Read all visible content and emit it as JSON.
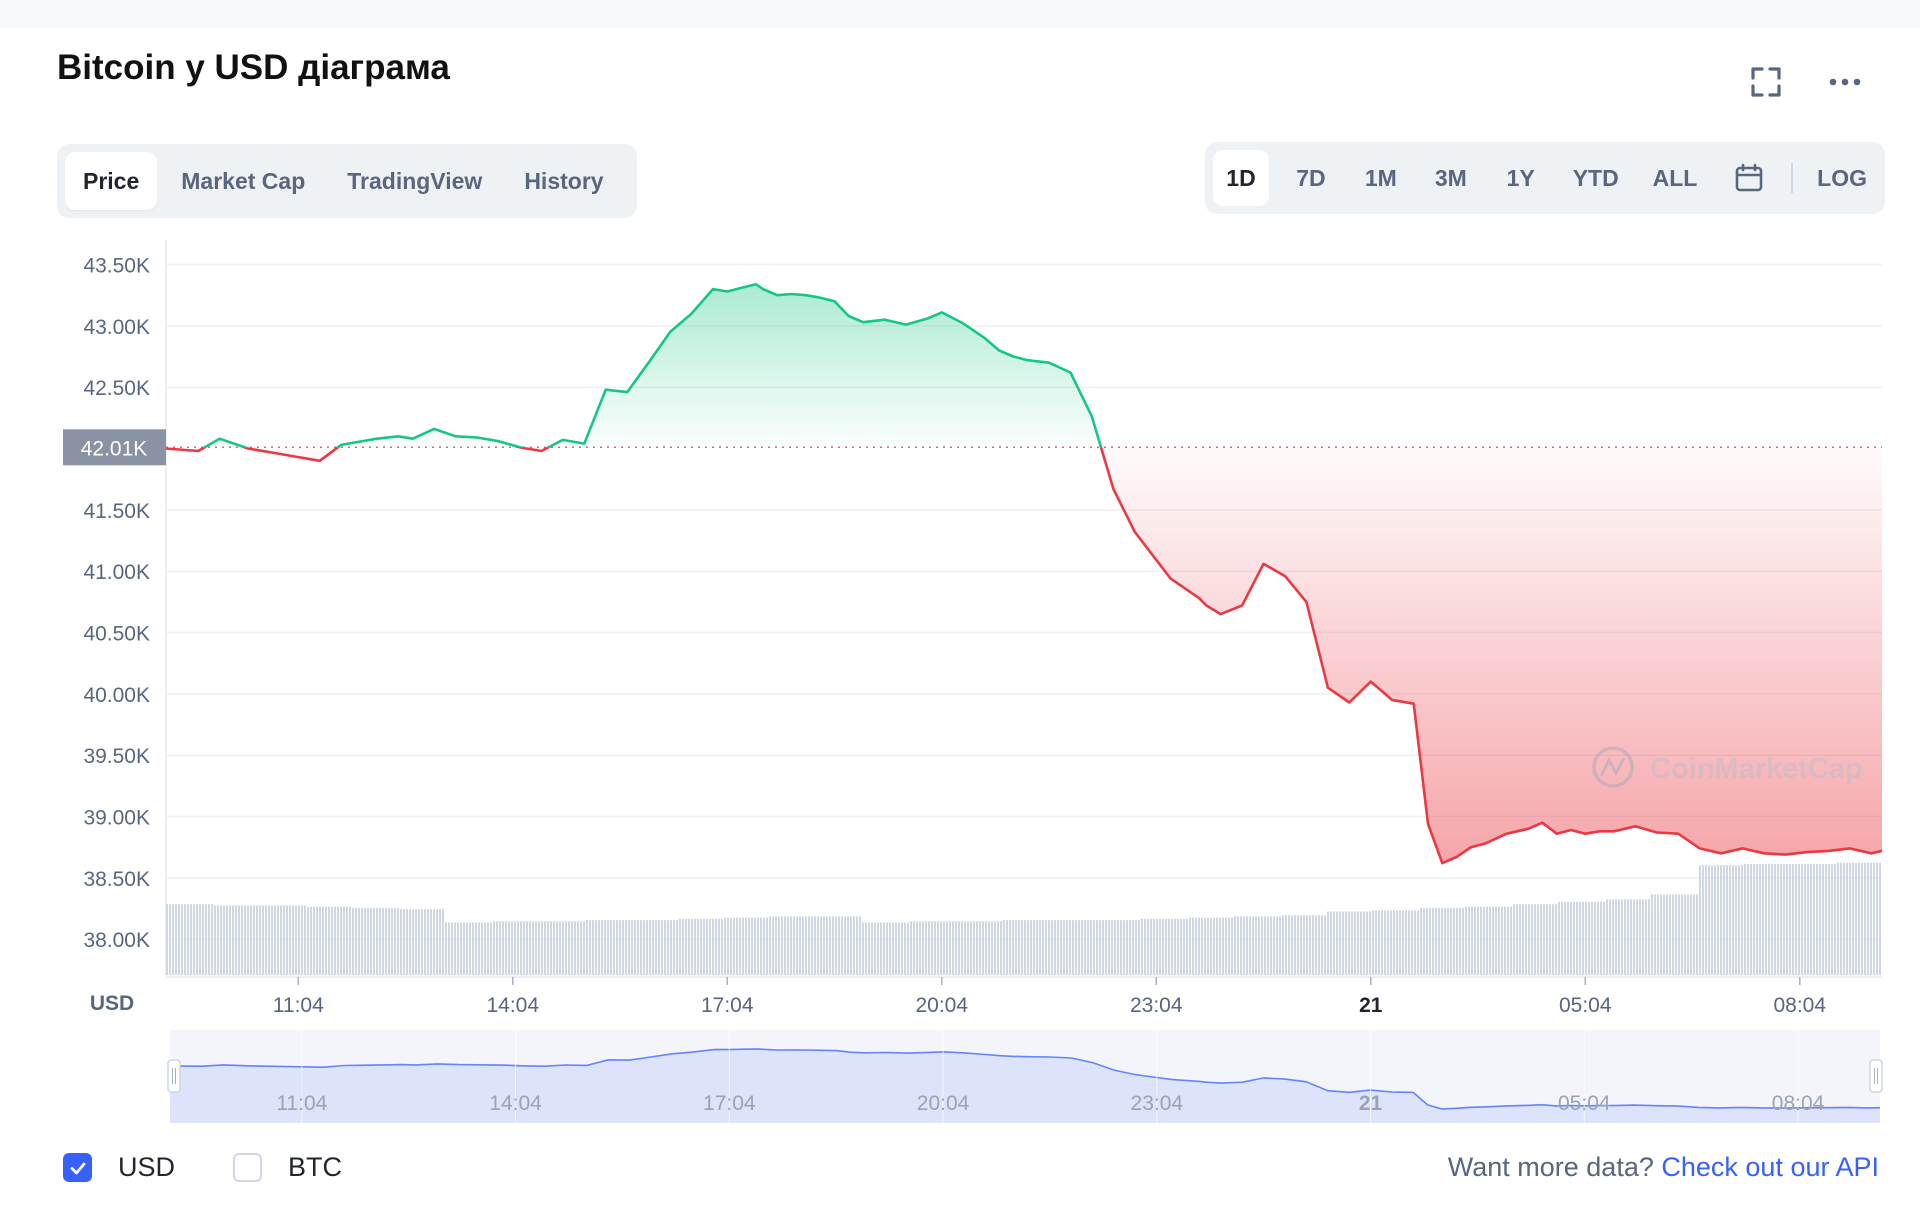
{
  "header": {
    "title": "Bitcoin у USD діаграма"
  },
  "tabs": [
    "Price",
    "Market Cap",
    "TradingView",
    "History"
  ],
  "ranges": [
    "1D",
    "7D",
    "1M",
    "3M",
    "1Y",
    "YTD",
    "ALL"
  ],
  "log_label": "LOG",
  "legend": {
    "usd": {
      "label": "USD",
      "checked": true
    },
    "btc": {
      "label": "BTC",
      "checked": false
    }
  },
  "api_note": {
    "text": "Want more data?",
    "link": "Check out our API"
  },
  "watermark": "CoinMarketCap",
  "colors": {
    "up": "#16c784",
    "down": "#ea3943",
    "accent": "#3861fb",
    "volume": "#cfd6e4",
    "navigator_fill": "#dde3fb",
    "navigator_line": "#3861fb"
  },
  "chart_data": {
    "type": "area",
    "title": "Bitcoin у USD діаграма",
    "currency_label": "USD",
    "y_ticks": [
      "43.50K",
      "43.00K",
      "42.50K",
      "42.01K",
      "41.50K",
      "41.00K",
      "40.50K",
      "40.00K",
      "39.50K",
      "39.00K",
      "38.50K",
      "38.00K"
    ],
    "ylim": [
      37700,
      43700
    ],
    "x_ticks": [
      "11:04",
      "14:04",
      "17:04",
      "20:04",
      "23:04",
      "21",
      "05:04",
      "08:04"
    ],
    "x_tick_hours": [
      2,
      5,
      8,
      11,
      14,
      17,
      20,
      23
    ],
    "xlim": [
      0.15,
      24.15
    ],
    "baseline": {
      "value": 42010,
      "label": "42.01K"
    },
    "series": [
      {
        "x": [
          0.15,
          0.6,
          0.9,
          1.3,
          1.7,
          2.0,
          2.3,
          2.6,
          2.8,
          3.1,
          3.4,
          3.6,
          3.9,
          4.2,
          4.5,
          4.8,
          5.1,
          5.4,
          5.7,
          6.0,
          6.3,
          6.6,
          6.9,
          7.2,
          7.5,
          7.8,
          8.0,
          8.2,
          8.4,
          8.5,
          8.7,
          8.9,
          9.1,
          9.3,
          9.5,
          9.7,
          9.9,
          10.2,
          10.5,
          10.8,
          11.0,
          11.3,
          11.6,
          11.8,
          12.0,
          12.2,
          12.5,
          12.8,
          13.1,
          13.4,
          13.7,
          14.2,
          14.6,
          14.7,
          14.9,
          15.2,
          15.5,
          15.8,
          16.1,
          16.4,
          16.7,
          17.0,
          17.3,
          17.6,
          17.8,
          18.0,
          18.2,
          18.4,
          18.6,
          18.9,
          19.2,
          19.4,
          19.6,
          19.8,
          20.0,
          20.2,
          20.4,
          20.7,
          21.0,
          21.3,
          21.6,
          21.9,
          22.2,
          22.5,
          22.8,
          23.1,
          23.4,
          23.7,
          24.0,
          24.15
        ],
        "y": [
          42000,
          41980,
          42080,
          42000,
          41960,
          41930,
          41900,
          42030,
          42050,
          42080,
          42100,
          42080,
          42160,
          42100,
          42090,
          42060,
          42010,
          41980,
          42070,
          42040,
          42480,
          42460,
          42700,
          42950,
          43100,
          43300,
          43280,
          43310,
          43340,
          43300,
          43250,
          43260,
          43250,
          43230,
          43200,
          43080,
          43030,
          43050,
          43010,
          43060,
          43110,
          43020,
          42900,
          42800,
          42750,
          42720,
          42700,
          42620,
          42260,
          41670,
          41320,
          40940,
          40780,
          40720,
          40650,
          40720,
          41060,
          40960,
          40750,
          40050,
          39930,
          40100,
          39950,
          39920,
          38940,
          38620,
          38670,
          38750,
          38780,
          38860,
          38900,
          38950,
          38860,
          38890,
          38860,
          38880,
          38880,
          38920,
          38870,
          38860,
          38740,
          38700,
          38740,
          38700,
          38690,
          38710,
          38720,
          38740,
          38700,
          38720
        ]
      }
    ],
    "volume_levels": [
      0.58,
      0.57,
      0.57,
      0.56,
      0.55,
      0.54,
      0.43,
      0.44,
      0.44,
      0.45,
      0.45,
      0.46,
      0.47,
      0.48,
      0.48,
      0.43,
      0.44,
      0.44,
      0.45,
      0.45,
      0.45,
      0.46,
      0.47,
      0.48,
      0.49,
      0.52,
      0.53,
      0.55,
      0.56,
      0.58,
      0.6,
      0.62,
      0.66,
      0.9,
      0.91,
      0.91,
      0.92
    ]
  }
}
